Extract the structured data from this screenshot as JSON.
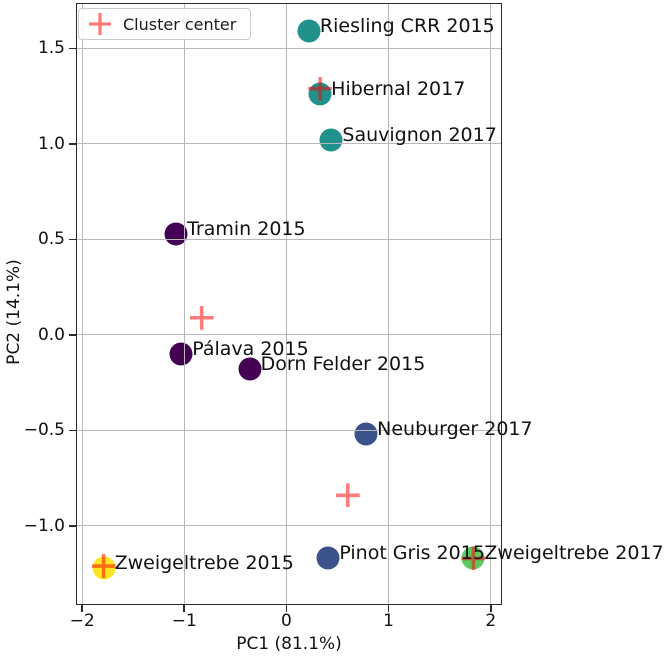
{
  "chart_data": {
    "type": "scatter",
    "title": "",
    "xlabel": "PC1 (81.1%)",
    "ylabel": "PC2 (14.1%)",
    "xlim": [
      -2.06,
      2.11
    ],
    "ylim": [
      -1.414,
      1.738
    ],
    "grid": true,
    "legend": {
      "position": "upper left",
      "entries": [
        {
          "label": "Cluster center",
          "marker": "plus"
        }
      ]
    },
    "x_ticks": [
      {
        "value": -2,
        "label": "−2"
      },
      {
        "value": -1,
        "label": "−1"
      },
      {
        "value": 0,
        "label": "0"
      },
      {
        "value": 1,
        "label": "1"
      },
      {
        "value": 2,
        "label": "2"
      }
    ],
    "y_ticks": [
      {
        "value": 1.5,
        "label": "1.5"
      },
      {
        "value": 1.0,
        "label": "1.0"
      },
      {
        "value": 0.5,
        "label": "0.5"
      },
      {
        "value": 0.0,
        "label": "0.0"
      },
      {
        "value": -0.5,
        "label": "−0.5"
      },
      {
        "value": -1.0,
        "label": "−1.0"
      }
    ],
    "points": [
      {
        "label": "Riesling CRR 2015",
        "x": 0.22,
        "y": 1.59,
        "color": "#21918c"
      },
      {
        "label": "Hibernal 2017",
        "x": 0.33,
        "y": 1.26,
        "color": "#21918c"
      },
      {
        "label": "Sauvignon 2017",
        "x": 0.44,
        "y": 1.02,
        "color": "#21918c"
      },
      {
        "label": "Tramin 2015",
        "x": -1.08,
        "y": 0.53,
        "color": "#440154"
      },
      {
        "label": "Pálava 2015",
        "x": -1.03,
        "y": -0.1,
        "color": "#440154"
      },
      {
        "label": "Dorn Felder 2015",
        "x": -0.36,
        "y": -0.18,
        "color": "#440154"
      },
      {
        "label": "Neuburger 2017",
        "x": 0.78,
        "y": -0.52,
        "color": "#3b528b"
      },
      {
        "label": "Pinot Gris 2015",
        "x": 0.41,
        "y": -1.17,
        "color": "#3b528b"
      },
      {
        "label": "Zweigeltrebe 2015",
        "x": -1.79,
        "y": -1.22,
        "color": "#fde725"
      },
      {
        "label": "Zweigeltrebe 2017",
        "x": 1.83,
        "y": -1.17,
        "color": "#5ec962"
      }
    ],
    "cluster_centers": [
      {
        "x": -0.83,
        "y": 0.09
      },
      {
        "x": 0.33,
        "y": 1.29
      },
      {
        "x": 0.6,
        "y": -0.84
      },
      {
        "x": -1.79,
        "y": -1.21
      },
      {
        "x": 1.83,
        "y": -1.17
      }
    ]
  },
  "style": {
    "marker_diameter": 23,
    "plus_size": 24,
    "plus_color": "rgba(255, 0, 0, 0.52)",
    "grid_color": "#b8b8b8",
    "spine_color": "#2a2a2a",
    "tick_color": "#2a2a2a",
    "text_color": "#111111",
    "label_offset_x": 11,
    "label_offset_y": -5
  }
}
